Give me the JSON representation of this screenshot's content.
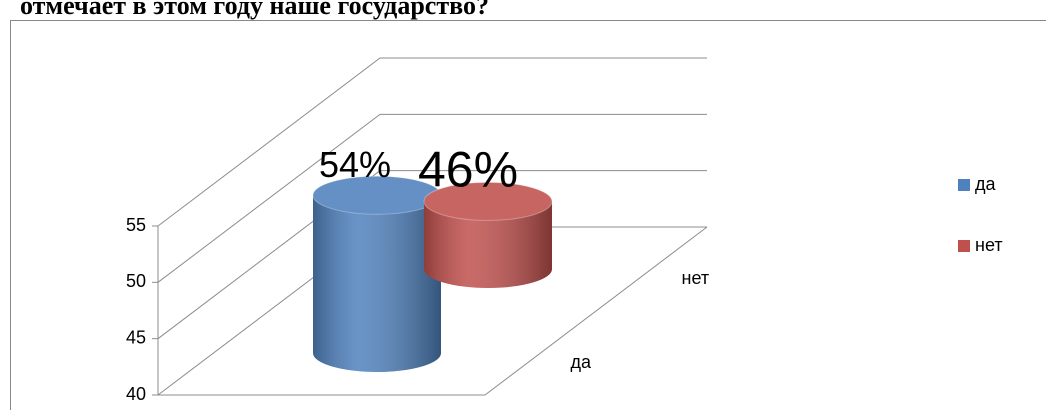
{
  "chart_data": {
    "type": "bar3d",
    "title": "отмечает в этом году наше государство?",
    "categories": [
      "да",
      "нет"
    ],
    "series": [
      {
        "name": "да",
        "color": "#4f81bd",
        "values": [
          54,
          null
        ],
        "value_labels": [
          "54%",
          null
        ]
      },
      {
        "name": "нет",
        "color": "#c0504d",
        "values": [
          null,
          46
        ],
        "value_labels": [
          null,
          "46%"
        ]
      }
    ],
    "ylim": [
      40,
      55
    ],
    "yticks": [
      40,
      45,
      50,
      55
    ],
    "grid": true,
    "legend": "right"
  }
}
